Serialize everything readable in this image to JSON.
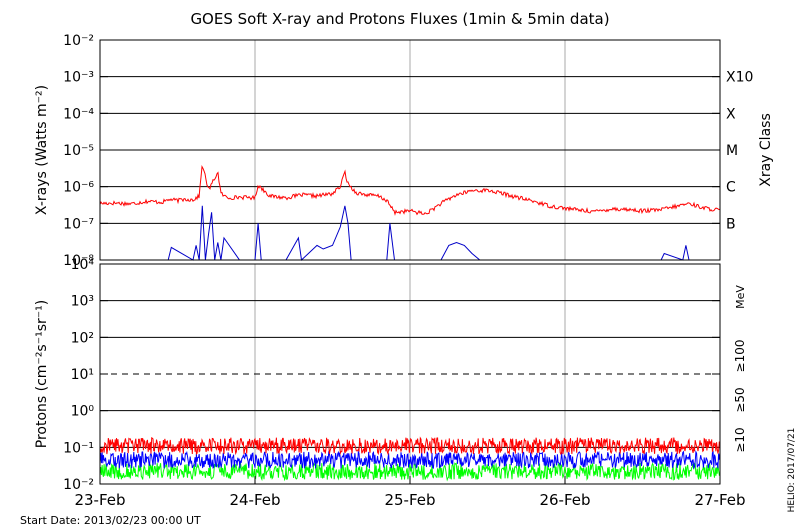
{
  "chart_data": [
    {
      "type": "line",
      "title": "GOES Soft X-ray and Protons Fluxes   (1min & 5min data)",
      "ylabel": "X-rays (Watts m⁻²)",
      "y_scale": "log",
      "ylim": [
        1e-08,
        0.01
      ],
      "ytick_labels": [
        "10⁻⁸",
        "10⁻⁷",
        "10⁻⁶",
        "10⁻⁵",
        "10⁻⁴",
        "10⁻³",
        "10⁻²"
      ],
      "ytick_values": [
        1e-08,
        1e-07,
        1e-06,
        1e-05,
        0.0001,
        0.001,
        0.01
      ],
      "right_axis_label": "Xray Class",
      "classes": [
        {
          "label": "X10",
          "value": 0.001
        },
        {
          "label": "X",
          "value": 0.0001
        },
        {
          "label": "M",
          "value": 1e-05
        },
        {
          "label": "C",
          "value": 1e-06
        },
        {
          "label": "B",
          "value": 1e-07
        }
      ],
      "xlim": [
        "2013-02-23 00:00",
        "2013-02-27 00:00"
      ],
      "grid": true,
      "series": [
        {
          "color": "#ff0000",
          "x": [
            0.0,
            0.1,
            0.2,
            0.3,
            0.4,
            0.45,
            0.5,
            0.55,
            0.6,
            0.64,
            0.66,
            0.7,
            0.76,
            0.78,
            0.82,
            0.9,
            1.0,
            1.02,
            1.1,
            1.2,
            1.3,
            1.4,
            1.5,
            1.55,
            1.58,
            1.6,
            1.65,
            1.7,
            1.8,
            1.85,
            1.9,
            2.0,
            2.1,
            2.15,
            2.2,
            2.3,
            2.4,
            2.5,
            2.6,
            2.7,
            2.8,
            2.9,
            3.0,
            3.1,
            3.2,
            3.3,
            3.4,
            3.5,
            3.6,
            3.7,
            3.8,
            3.9,
            4.0
          ],
          "values": [
            3.5e-07,
            3.6e-07,
            3.4e-07,
            4e-07,
            3.8e-07,
            4.5e-07,
            4.2e-07,
            4.6e-07,
            4.4e-07,
            5.5e-07,
            4.2e-06,
            8e-07,
            2.5e-06,
            6.5e-07,
            5e-07,
            5.2e-07,
            5e-07,
            1.1e-06,
            5.5e-07,
            5e-07,
            6e-07,
            5.6e-07,
            6.5e-07,
            1e-06,
            2.5e-06,
            1.2e-06,
            7e-07,
            6.2e-07,
            5.5e-07,
            4.2e-07,
            2e-07,
            2.2e-07,
            1.8e-07,
            2.5e-07,
            3.5e-07,
            6e-07,
            7.8e-07,
            8e-07,
            6.5e-07,
            5e-07,
            4e-07,
            3e-07,
            2.6e-07,
            2.3e-07,
            2.1e-07,
            2.5e-07,
            2.4e-07,
            2.2e-07,
            2.3e-07,
            2.8e-07,
            3.5e-07,
            2.6e-07,
            2.3e-07
          ]
        },
        {
          "color": "#0000c8",
          "x": [
            0.44,
            0.46,
            0.6,
            0.62,
            0.64,
            0.66,
            0.68,
            0.7,
            0.72,
            0.74,
            0.76,
            0.78,
            0.8,
            0.9,
            1.0,
            1.02,
            1.04,
            1.1,
            1.2,
            1.28,
            1.3,
            1.4,
            1.44,
            1.5,
            1.55,
            1.58,
            1.6,
            1.62,
            1.65,
            1.68,
            1.7,
            1.75,
            1.85,
            1.87,
            1.9,
            2.2,
            2.25,
            2.3,
            2.35,
            2.4,
            2.45,
            2.5,
            2.6,
            2.7,
            3.1,
            3.62,
            3.64,
            3.76,
            3.78,
            3.8,
            4.0
          ],
          "values": [
            1e-08,
            2.2e-08,
            1e-08,
            2.5e-08,
            1e-08,
            3e-07,
            1e-08,
            5e-08,
            2e-07,
            1e-08,
            3e-08,
            1e-08,
            4e-08,
            1e-08,
            1e-08,
            1e-07,
            1e-08,
            1e-08,
            1e-08,
            4e-08,
            1e-08,
            2.5e-08,
            2e-08,
            2.5e-08,
            8e-08,
            3e-07,
            1e-07,
            1e-08,
            1e-08,
            1e-08,
            1e-08,
            1e-08,
            1e-08,
            1e-07,
            1e-08,
            1e-08,
            2.5e-08,
            3e-08,
            2.5e-08,
            1.5e-08,
            1e-08,
            1e-08,
            1e-08,
            1e-08,
            1e-08,
            1e-08,
            1.5e-08,
            1e-08,
            2.5e-08,
            1e-08,
            1e-08
          ]
        }
      ]
    },
    {
      "type": "line",
      "ylabel": "Protons (cm⁻²s⁻¹sr⁻¹)",
      "y_scale": "log",
      "ylim": [
        0.01,
        10000
      ],
      "ytick_labels": [
        "10⁻²",
        "10⁻¹",
        "10⁰",
        "10¹",
        "10²",
        "10³",
        "10⁴"
      ],
      "ytick_values": [
        0.01,
        0.1,
        1,
        10,
        100,
        1000,
        10000
      ],
      "threshold": 10,
      "right_axis_label": "MeV",
      "xlim": [
        "2013-02-23 00:00",
        "2013-02-27 00:00"
      ],
      "grid": true,
      "series": [
        {
          "name": "≥10",
          "color": "#ff0000",
          "x": [
            0,
            4
          ],
          "values": [
            0.11,
            0.11
          ]
        },
        {
          "name": "≥50",
          "color": "#0000ff",
          "x": [
            0,
            4
          ],
          "values": [
            0.045,
            0.045
          ]
        },
        {
          "name": "≥100",
          "color": "#00ff00",
          "x": [
            0,
            4
          ],
          "values": [
            0.022,
            0.022
          ]
        }
      ]
    }
  ],
  "x_tick_labels": [
    "23-Feb",
    "24-Feb",
    "25-Feb",
    "26-Feb",
    "27-Feb"
  ],
  "start_date": "Start Date: 2013/02/23 00:00 UT",
  "credit": "HELIO: 2017/07/21"
}
